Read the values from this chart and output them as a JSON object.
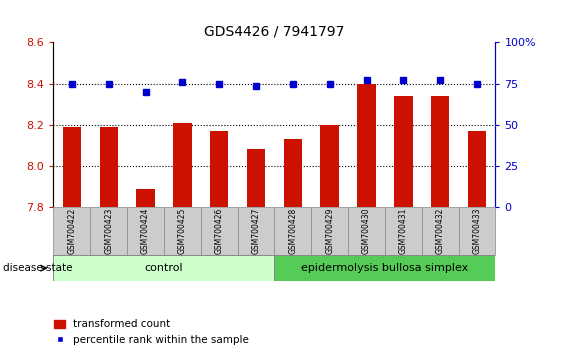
{
  "title": "GDS4426 / 7941797",
  "samples": [
    "GSM700422",
    "GSM700423",
    "GSM700424",
    "GSM700425",
    "GSM700426",
    "GSM700427",
    "GSM700428",
    "GSM700429",
    "GSM700430",
    "GSM700431",
    "GSM700432",
    "GSM700433"
  ],
  "bar_values": [
    8.19,
    8.19,
    7.89,
    8.21,
    8.17,
    8.08,
    8.13,
    8.2,
    8.4,
    8.34,
    8.34,
    8.17
  ],
  "blue_values": [
    8.4,
    8.4,
    8.36,
    8.41,
    8.4,
    8.39,
    8.4,
    8.4,
    8.42,
    8.42,
    8.42,
    8.4
  ],
  "ylim_left": [
    7.8,
    8.6
  ],
  "yticks_left": [
    7.8,
    8.0,
    8.2,
    8.4,
    8.6
  ],
  "yticks_right": [
    0,
    25,
    50,
    75,
    100
  ],
  "bar_color": "#cc1100",
  "blue_color": "#0000cc",
  "control_color": "#ccffcc",
  "disease_color": "#55cc55",
  "tick_label_bg": "#cccccc",
  "control_label": "control",
  "disease_label": "epidermolysis bullosa simplex",
  "disease_state_label": "disease state",
  "n_control": 6,
  "n_disease": 6,
  "legend_bar": "transformed count",
  "legend_blue": "percentile rank within the sample",
  "title_fontsize": 10,
  "axis_fontsize": 8
}
